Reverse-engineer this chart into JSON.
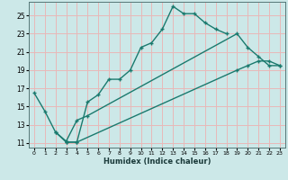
{
  "xlabel": "Humidex (Indice chaleur)",
  "xlim": [
    -0.5,
    23.5
  ],
  "ylim": [
    10.5,
    26.5
  ],
  "xticks": [
    0,
    1,
    2,
    3,
    4,
    5,
    6,
    7,
    8,
    9,
    10,
    11,
    12,
    13,
    14,
    15,
    16,
    17,
    18,
    19,
    20,
    21,
    22,
    23
  ],
  "yticks": [
    11,
    13,
    15,
    17,
    19,
    21,
    23,
    25
  ],
  "background_color": "#cce8e8",
  "grid_color": "#e8b8b8",
  "line_color": "#1a7a6e",
  "line1_x": [
    0,
    1,
    2,
    3,
    4,
    5,
    6,
    7,
    8,
    9,
    10,
    11,
    12,
    13,
    14,
    15,
    16,
    17,
    18
  ],
  "line1_y": [
    16.5,
    14.5,
    12.2,
    11.1,
    11.1,
    15.5,
    16.3,
    18.0,
    18.0,
    19.0,
    21.5,
    22.0,
    23.5,
    26.0,
    25.2,
    25.2,
    24.2,
    23.5,
    23.0
  ],
  "line2_x": [
    2,
    3,
    4,
    5,
    19,
    20,
    21,
    22,
    23
  ],
  "line2_y": [
    12.2,
    11.2,
    13.5,
    14.0,
    23.0,
    21.5,
    20.5,
    19.5,
    19.5
  ],
  "line3_x": [
    3,
    4,
    19,
    20,
    21,
    22,
    23
  ],
  "line3_y": [
    11.1,
    11.1,
    19.0,
    19.5,
    20.0,
    20.0,
    19.5
  ]
}
